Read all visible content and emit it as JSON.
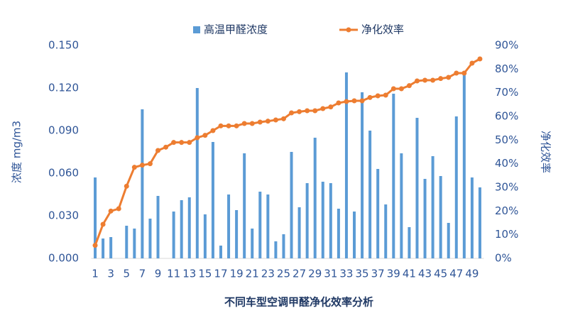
{
  "chart_data": {
    "type": "combo",
    "xlabel": "不同车型空调甲醛净化效率分析",
    "ylabel": "浓度 mg/m3",
    "y2label": "净化效率",
    "categories": [
      "1",
      null,
      "3",
      null,
      "5",
      null,
      "7",
      null,
      "9",
      null,
      "11",
      null,
      "13",
      null,
      "15",
      null,
      "17",
      null,
      "19",
      null,
      "21",
      null,
      "23",
      null,
      "25",
      null,
      "27",
      null,
      "29",
      null,
      "31",
      null,
      "33",
      null,
      "35",
      null,
      "37",
      null,
      "39",
      null,
      "41",
      null,
      "43",
      null,
      "45",
      null,
      "47",
      null,
      "49",
      null
    ],
    "series": [
      {
        "name": "高温甲醛浓度",
        "type": "bar",
        "color": "#5b9bd5",
        "values": [
          0.057,
          0.014,
          0.015,
          0,
          0.023,
          0.021,
          0.105,
          0.028,
          0.044,
          0,
          0.033,
          0.041,
          0.043,
          0.12,
          0.031,
          0.082,
          0.009,
          0.045,
          0.034,
          0.074,
          0.021,
          0.047,
          0.045,
          0.012,
          0.017,
          0.075,
          0.036,
          0.053,
          0.085,
          0.054,
          0.053,
          0.035,
          0.131,
          0.033,
          0.117,
          0.09,
          0.063,
          0.038,
          0.116,
          0.074,
          0.022,
          0.099,
          0.056,
          0.072,
          0.058,
          0.025,
          0.1,
          0.132,
          0.057,
          0.05
        ]
      },
      {
        "name": "净化效率",
        "type": "line",
        "axis": "y2",
        "color": "#ed7d31",
        "values": [
          5.5,
          14.4,
          20,
          21,
          30.5,
          38.5,
          39.4,
          40,
          45.6,
          47,
          49,
          49,
          49,
          51,
          52,
          54,
          56,
          56,
          56,
          57,
          57,
          57.6,
          58,
          58.5,
          59,
          61.5,
          62,
          62.4,
          62.4,
          63.3,
          64,
          65.7,
          66.3,
          66.6,
          66.6,
          68,
          68.7,
          69,
          71.7,
          71.7,
          73,
          75,
          75.3,
          75.3,
          76,
          76.5,
          78.3,
          78.3,
          82.5,
          84.3
        ]
      }
    ],
    "ylim": [
      0,
      0.15
    ],
    "yticks": [
      {
        "value": 0,
        "label": "0.000"
      },
      {
        "value": 0.03,
        "label": "0.030"
      },
      {
        "value": 0.06,
        "label": "0.060"
      },
      {
        "value": 0.09,
        "label": "0.090"
      },
      {
        "value": 0.12,
        "label": "0.120"
      },
      {
        "value": 0.15,
        "label": "0.150"
      }
    ],
    "y2lim": [
      0,
      90
    ],
    "y2ticks": [
      {
        "value": 0,
        "label": "0%"
      },
      {
        "value": 10,
        "label": "10%"
      },
      {
        "value": 20,
        "label": "20%"
      },
      {
        "value": 30,
        "label": "30%"
      },
      {
        "value": 40,
        "label": "40%"
      },
      {
        "value": 50,
        "label": "50%"
      },
      {
        "value": 60,
        "label": "60%"
      },
      {
        "value": 70,
        "label": "70%"
      },
      {
        "value": 80,
        "label": "80%"
      },
      {
        "value": 90,
        "label": "90%"
      }
    ],
    "legend": "top"
  }
}
